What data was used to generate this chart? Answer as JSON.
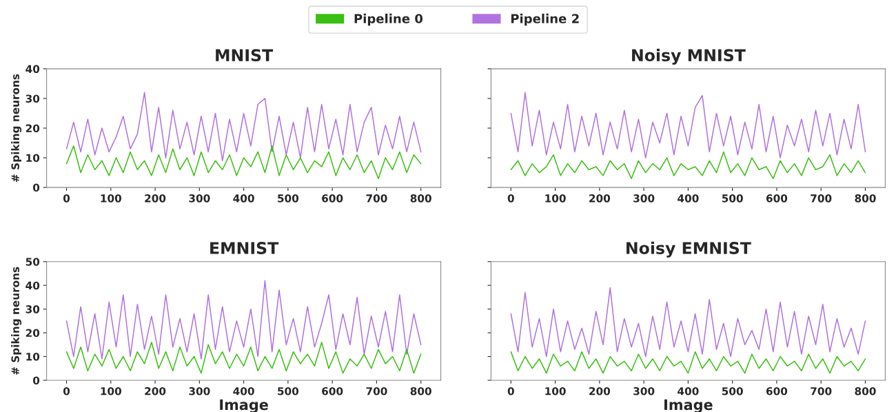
{
  "chart_data": [
    {
      "type": "line",
      "title": "MNIST",
      "ylabel": "# Spiking neurons",
      "legend": "top",
      "grid": false,
      "x": [
        0,
        16,
        32,
        48,
        64,
        80,
        96,
        112,
        128,
        144,
        160,
        176,
        192,
        208,
        224,
        240,
        256,
        272,
        288,
        304,
        320,
        336,
        352,
        368,
        384,
        400,
        416,
        432,
        448,
        464,
        480,
        496,
        512,
        528,
        544,
        560,
        576,
        592,
        608,
        624,
        640,
        656,
        672,
        688,
        704,
        720,
        736,
        752,
        768,
        784,
        800
      ],
      "xlim": [
        -45,
        845
      ],
      "xticks": [
        0,
        100,
        200,
        300,
        400,
        500,
        600,
        700,
        800
      ],
      "ylim": [
        0,
        40
      ],
      "yticks": [
        0,
        10,
        20,
        30,
        40
      ],
      "series": [
        {
          "name": "Pipeline 2",
          "color": "#b072e0",
          "values": [
            13,
            22,
            12,
            23,
            11,
            20,
            12,
            17,
            24,
            13,
            18,
            32,
            12,
            27,
            10,
            26,
            13,
            22,
            11,
            24,
            12,
            25,
            9,
            23,
            12,
            25,
            14,
            28,
            30,
            12,
            24,
            11,
            22,
            10,
            27,
            12,
            28,
            13,
            23,
            11,
            28,
            12,
            22,
            27,
            11,
            21,
            13,
            24,
            12,
            22,
            12
          ]
        },
        {
          "name": "Pipeline 0",
          "color": "#3cbf14",
          "values": [
            8,
            14,
            5,
            11,
            6,
            9,
            4,
            10,
            5,
            12,
            6,
            9,
            4,
            11,
            5,
            13,
            6,
            10,
            4,
            12,
            5,
            9,
            6,
            11,
            4,
            10,
            7,
            12,
            5,
            14,
            4,
            11,
            6,
            10,
            5,
            9,
            7,
            12,
            4,
            10,
            6,
            11,
            5,
            9,
            3,
            10,
            6,
            12,
            5,
            11,
            8
          ]
        }
      ]
    },
    {
      "type": "line",
      "title": "Noisy MNIST",
      "tick_labels": "x",
      "grid": false,
      "x": [
        0,
        16,
        32,
        48,
        64,
        80,
        96,
        112,
        128,
        144,
        160,
        176,
        192,
        208,
        224,
        240,
        256,
        272,
        288,
        304,
        320,
        336,
        352,
        368,
        384,
        400,
        416,
        432,
        448,
        464,
        480,
        496,
        512,
        528,
        544,
        560,
        576,
        592,
        608,
        624,
        640,
        656,
        672,
        688,
        704,
        720,
        736,
        752,
        768,
        784,
        800
      ],
      "xlim": [
        -45,
        845
      ],
      "xticks": [
        0,
        100,
        200,
        300,
        400,
        500,
        600,
        700,
        800
      ],
      "ylim": [
        0,
        40
      ],
      "yticks": [
        0,
        10,
        20,
        30,
        40
      ],
      "series": [
        {
          "name": "Pipeline 2",
          "color": "#b072e0",
          "values": [
            25,
            12,
            32,
            14,
            26,
            11,
            22,
            13,
            28,
            12,
            24,
            14,
            25,
            11,
            22,
            13,
            26,
            12,
            23,
            10,
            22,
            15,
            25,
            11,
            24,
            14,
            27,
            31,
            12,
            25,
            14,
            24,
            11,
            22,
            13,
            28,
            12,
            24,
            10,
            21,
            14,
            23,
            12,
            26,
            14,
            25,
            11,
            23,
            13,
            28,
            12
          ]
        },
        {
          "name": "Pipeline 0",
          "color": "#3cbf14",
          "values": [
            6,
            9,
            4,
            8,
            5,
            7,
            11,
            4,
            8,
            5,
            9,
            6,
            7,
            4,
            9,
            6,
            8,
            3,
            9,
            5,
            8,
            6,
            10,
            4,
            8,
            6,
            7,
            4,
            9,
            5,
            12,
            5,
            8,
            4,
            10,
            6,
            7,
            3,
            9,
            5,
            8,
            4,
            10,
            6,
            7,
            11,
            4,
            8,
            5,
            9,
            5
          ]
        }
      ]
    },
    {
      "type": "line",
      "title": "EMNIST",
      "ylabel": "# Spiking neurons",
      "xlabel": "Image",
      "grid": false,
      "x": [
        0,
        16,
        32,
        48,
        64,
        80,
        96,
        112,
        128,
        144,
        160,
        176,
        192,
        208,
        224,
        240,
        256,
        272,
        288,
        304,
        320,
        336,
        352,
        368,
        384,
        400,
        416,
        432,
        448,
        464,
        480,
        496,
        512,
        528,
        544,
        560,
        576,
        592,
        608,
        624,
        640,
        656,
        672,
        688,
        704,
        720,
        736,
        752,
        768,
        784,
        800
      ],
      "xlim": [
        -45,
        845
      ],
      "xticks": [
        0,
        100,
        200,
        300,
        400,
        500,
        600,
        700,
        800
      ],
      "ylim": [
        0,
        50
      ],
      "yticks": [
        0,
        10,
        20,
        30,
        40,
        50
      ],
      "series": [
        {
          "name": "Pipeline 2",
          "color": "#b072e0",
          "values": [
            25,
            10,
            31,
            12,
            28,
            9,
            33,
            14,
            36,
            10,
            32,
            13,
            27,
            11,
            36,
            14,
            26,
            12,
            28,
            9,
            36,
            13,
            31,
            12,
            25,
            14,
            30,
            10,
            42,
            12,
            38,
            15,
            26,
            12,
            31,
            14,
            24,
            36,
            13,
            28,
            15,
            35,
            11,
            27,
            14,
            29,
            12,
            36,
            11,
            28,
            15
          ]
        },
        {
          "name": "Pipeline 0",
          "color": "#3cbf14",
          "values": [
            12,
            5,
            14,
            4,
            11,
            6,
            13,
            5,
            10,
            4,
            12,
            7,
            16,
            5,
            12,
            4,
            14,
            6,
            10,
            3,
            15,
            7,
            12,
            5,
            11,
            6,
            14,
            4,
            10,
            5,
            13,
            4,
            12,
            7,
            11,
            6,
            16,
            5,
            12,
            3,
            9,
            6,
            11,
            5,
            13,
            7,
            10,
            4,
            13,
            3,
            11
          ]
        }
      ]
    },
    {
      "type": "line",
      "title": "Noisy EMNIST",
      "xlabel": "Image",
      "tick_labels": "x",
      "grid": false,
      "x": [
        0,
        16,
        32,
        48,
        64,
        80,
        96,
        112,
        128,
        144,
        160,
        176,
        192,
        208,
        224,
        240,
        256,
        272,
        288,
        304,
        320,
        336,
        352,
        368,
        384,
        400,
        416,
        432,
        448,
        464,
        480,
        496,
        512,
        528,
        544,
        560,
        576,
        592,
        608,
        624,
        640,
        656,
        672,
        688,
        704,
        720,
        736,
        752,
        768,
        784,
        800
      ],
      "xlim": [
        -45,
        845
      ],
      "xticks": [
        0,
        100,
        200,
        300,
        400,
        500,
        600,
        700,
        800
      ],
      "ylim": [
        0,
        50
      ],
      "yticks": [
        0,
        10,
        20,
        30,
        40,
        50
      ],
      "series": [
        {
          "name": "Pipeline 2",
          "color": "#b072e0",
          "values": [
            28,
            12,
            37,
            14,
            26,
            10,
            30,
            12,
            25,
            13,
            22,
            11,
            29,
            15,
            39,
            12,
            26,
            14,
            24,
            10,
            27,
            13,
            33,
            14,
            25,
            12,
            28,
            11,
            34,
            13,
            24,
            10,
            26,
            15,
            21,
            13,
            30,
            12,
            33,
            14,
            29,
            11,
            27,
            15,
            32,
            12,
            26,
            14,
            22,
            11,
            25
          ]
        },
        {
          "name": "Pipeline 0",
          "color": "#3cbf14",
          "values": [
            12,
            4,
            10,
            5,
            9,
            3,
            11,
            6,
            8,
            4,
            12,
            5,
            9,
            3,
            10,
            6,
            8,
            4,
            11,
            5,
            9,
            4,
            10,
            6,
            8,
            3,
            12,
            5,
            9,
            4,
            10,
            6,
            8,
            3,
            11,
            5,
            9,
            4,
            10,
            6,
            8,
            4,
            11,
            5,
            9,
            3,
            10,
            6,
            8,
            4,
            9
          ]
        }
      ]
    }
  ]
}
